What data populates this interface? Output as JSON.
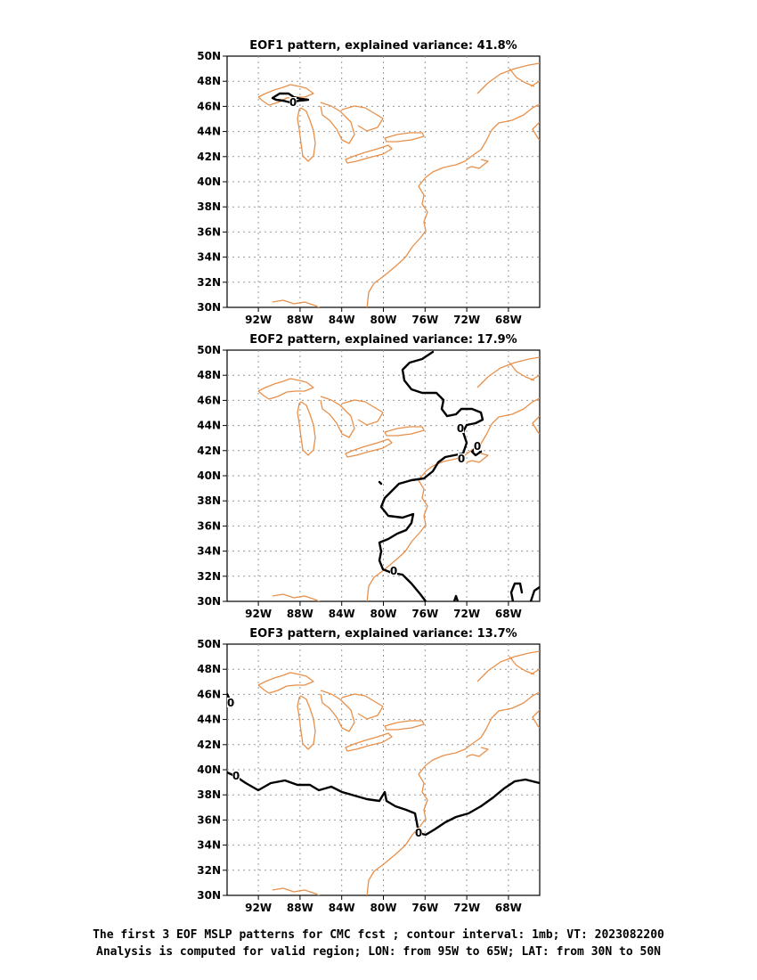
{
  "panels": [
    {
      "title": "EOF1 pattern, explained variance: 41.8%",
      "contour_label": "0",
      "eof_pattern": "single small zero-contour loop near Lake Superior"
    },
    {
      "title": "EOF2 pattern, explained variance: 17.9%",
      "contour_label": "0",
      "eof_pattern": "zero contour runs north–south along the US East Coast"
    },
    {
      "title": "EOF3 pattern, explained variance: 13.7%",
      "contour_label": "0",
      "eof_pattern": "zero contour runs west–east near 38–39N"
    }
  ],
  "lat_ticks": [
    "50N",
    "48N",
    "46N",
    "44N",
    "42N",
    "40N",
    "38N",
    "36N",
    "34N",
    "32N",
    "30N"
  ],
  "lon_ticks": [
    "92W",
    "88W",
    "84W",
    "80W",
    "76W",
    "72W",
    "68W"
  ],
  "caption": {
    "line1": "The first 3 EOF MSLP patterns for CMC fcst ; contour interval: 1mb; VT: 2023082200",
    "line2": "Analysis is computed for valid region; LON: from 95W to 65W; LAT: from 30N to 50N"
  },
  "colors": {
    "coastline": "#e8904a",
    "contour": "#000000",
    "grid": "#999999"
  }
}
